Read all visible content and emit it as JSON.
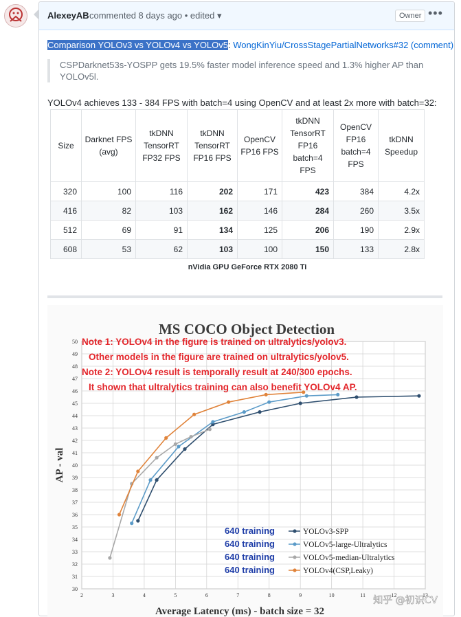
{
  "comment": {
    "author": "AlexeyAB",
    "meta": "commented 8 days ago • edited ▾",
    "badge": "Owner",
    "more": "•••"
  },
  "intro": {
    "highlight": "Comparison YOLOv3 vs YOLOv4 vs YOLOv5",
    "sep": ": ",
    "link": "WongKinYiu/CrossStagePartialNetworks#32 (comment)"
  },
  "quote": "CSPDarknet53s-YOSPP gets 19.5% faster model inference speed and 1.3% higher AP than YOLOv5l.",
  "paragraph": "YOLOv4 achieves 133 - 384 FPS with batch=4 using OpenCV and at least 2x more with batch=32:",
  "table": {
    "headers": [
      "Size",
      "Darknet FPS (avg)",
      "tkDNN TensorRT FP32 FPS",
      "tkDNN TensorRT FP16 FPS",
      "OpenCV FP16 FPS",
      "tkDNN TensorRT FP16 batch=4 FPS",
      "OpenCV FP16 batch=4 FPS",
      "tkDNN Speedup"
    ],
    "rows": [
      [
        "320",
        "100",
        "116",
        "202",
        "171",
        "423",
        "384",
        "4.2x"
      ],
      [
        "416",
        "82",
        "103",
        "162",
        "146",
        "284",
        "260",
        "3.5x"
      ],
      [
        "512",
        "69",
        "91",
        "134",
        "125",
        "206",
        "190",
        "2.9x"
      ],
      [
        "608",
        "53",
        "62",
        "103",
        "100",
        "150",
        "133",
        "2.8x"
      ]
    ],
    "caption": "nVidia GPU GeForce RTX 2080 Ti"
  },
  "chart_data": {
    "type": "line",
    "title": "MS COCO Object Detection",
    "xlabel": "Average Latency (ms) - batch size = 32",
    "ylabel": "AP - val",
    "xlim": [
      2,
      13
    ],
    "ylim": [
      30,
      50
    ],
    "xticks": [
      2,
      3,
      4,
      5,
      6,
      7,
      8,
      9,
      10,
      11,
      12,
      13
    ],
    "yticks": [
      30,
      31,
      32,
      33,
      34,
      35,
      36,
      37,
      38,
      39,
      40,
      41,
      42,
      43,
      44,
      45,
      46,
      47,
      48,
      49,
      50
    ],
    "grid": true,
    "notes": [
      "Note 1: YOLOv4 in the figure is trained on ultralytics/yolov3.",
      "Other models in the figure are trained on ultralytics/yolov5.",
      "Note 2: YOLOv4 result is temporally result at 240/300 epochs.",
      "It shown that ultralytics training can also benefit YOLOv4 AP."
    ],
    "series": [
      {
        "name": "YOLOv3-SPP",
        "prefix": "640 training",
        "color": "#2f4f6f",
        "points": [
          [
            3.8,
            35.5
          ],
          [
            4.4,
            38.8
          ],
          [
            5.3,
            41.3
          ],
          [
            6.2,
            43.3
          ],
          [
            7.7,
            44.3
          ],
          [
            9.0,
            45.0
          ],
          [
            10.8,
            45.5
          ],
          [
            12.8,
            45.6
          ]
        ]
      },
      {
        "name": "VOLOv5-large-Ultralytics",
        "prefix": "640 training",
        "color": "#5b9bc8",
        "points": [
          [
            3.6,
            35.3
          ],
          [
            4.2,
            38.8
          ],
          [
            5.1,
            41.5
          ],
          [
            6.2,
            43.5
          ],
          [
            7.2,
            44.3
          ],
          [
            8.0,
            45.1
          ],
          [
            9.2,
            45.6
          ],
          [
            10.2,
            45.7
          ]
        ]
      },
      {
        "name": "VOLOv5-median-Ultralytics",
        "prefix": "640 training",
        "color": "#a8a8a8",
        "points": [
          [
            2.9,
            32.5
          ],
          [
            3.6,
            38.5
          ],
          [
            4.4,
            40.6
          ],
          [
            5.0,
            41.7
          ],
          [
            5.5,
            42.3
          ],
          [
            6.1,
            42.9
          ]
        ]
      },
      {
        "name": "YOLOv4(CSP,Leaky)",
        "prefix": "640 training",
        "color": "#e0833a",
        "points": [
          [
            3.2,
            36.0
          ],
          [
            3.8,
            39.5
          ],
          [
            4.7,
            42.2
          ],
          [
            5.6,
            44.1
          ],
          [
            6.7,
            45.1
          ],
          [
            7.9,
            45.7
          ],
          [
            9.1,
            45.9
          ]
        ]
      }
    ],
    "watermark": "知乎 @初识CV"
  },
  "colors": {
    "accent": "#0366d6",
    "highlight": "#3b72c7",
    "note": "#e3262b",
    "legend_prefix": "#1f3ea8"
  }
}
